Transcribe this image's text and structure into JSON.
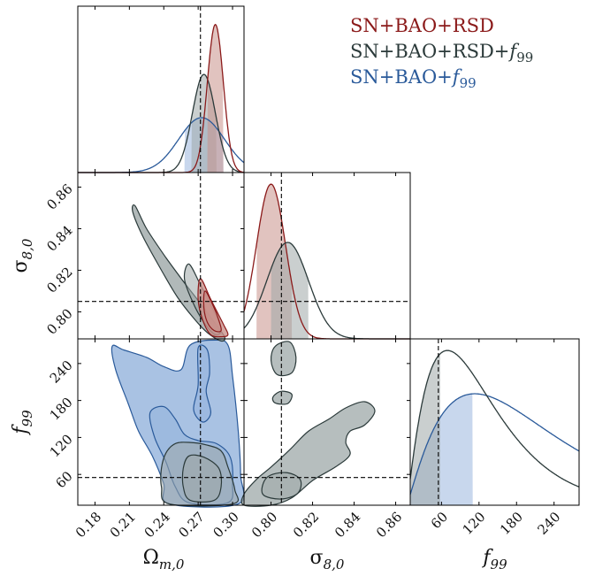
{
  "chart_data": {
    "type": "corner",
    "parameters": [
      "Omega_m0",
      "sigma_8,0",
      "f_99"
    ],
    "axis_labels": {
      "x": {
        "om": "Ω",
        "om_sub": "m,0",
        "s8": "σ",
        "s8_sub": "8,0",
        "f": "f",
        "f_sub": "99"
      },
      "y": {
        "s8": "σ",
        "s8_sub": "8,0",
        "f": "f",
        "f_sub": "99"
      }
    },
    "ranges": {
      "om": [
        0.165,
        0.31
      ],
      "s8": [
        0.787,
        0.867
      ],
      "f": [
        10,
        280
      ]
    },
    "ticks": {
      "om": [
        0.18,
        0.21,
        0.24,
        0.27,
        0.3
      ],
      "om_labels": [
        "0.18",
        "0.21",
        "0.24",
        "0.27",
        "0.30"
      ],
      "s8_x": [
        0.8,
        0.82,
        0.84,
        0.86
      ],
      "s8_x_labels": [
        "0.80",
        "0.82",
        "0.84",
        "0.86"
      ],
      "s8_y": [
        0.8,
        0.82,
        0.84,
        0.86
      ],
      "s8_y_labels": [
        "0.80",
        "0.82",
        "0.84",
        "0.86"
      ],
      "f": [
        60,
        120,
        180,
        240
      ],
      "f_labels": [
        "60",
        "120",
        "180",
        "240"
      ]
    },
    "reference": {
      "om": 0.272,
      "s8": 0.805,
      "f": 55
    },
    "legend": {
      "placement": "top-right",
      "entries": [
        {
          "base": "SN+BAO+RSD",
          "italic": "",
          "sub": ""
        },
        {
          "base": "SN+BAO+RSD+",
          "italic": "f",
          "sub": "99"
        },
        {
          "base": "SN+BAO+",
          "italic": "f",
          "sub": "99"
        }
      ]
    },
    "series": [
      {
        "key": "rsd",
        "color": "#8b1a1a",
        "fill": "#c9918b",
        "marginals": {
          "om": {
            "mean": 0.285,
            "sd": 0.007,
            "band": [
              0.278,
              0.292
            ]
          },
          "s8": {
            "mean": 0.8,
            "sd": 0.007,
            "band": [
              0.793,
              0.81
            ]
          }
        },
        "contours": {
          "om_s8": [
            [
              [
                0.272,
                0.816
              ],
              [
                0.281,
                0.806
              ],
              [
                0.292,
                0.794
              ],
              [
                0.296,
                0.789
              ],
              [
                0.29,
                0.788
              ],
              [
                0.281,
                0.789
              ],
              [
                0.274,
                0.796
              ],
              [
                0.27,
                0.806
              ]
            ],
            [
              [
                0.276,
                0.81
              ],
              [
                0.283,
                0.803
              ],
              [
                0.288,
                0.796
              ],
              [
                0.29,
                0.791
              ],
              [
                0.284,
                0.791
              ],
              [
                0.278,
                0.795
              ],
              [
                0.275,
                0.802
              ]
            ]
          ]
        }
      },
      {
        "key": "rsd_f99",
        "color": "#2b3a3a",
        "fill": "#9ea8a8",
        "marginals": {
          "om": {
            "mean": 0.275,
            "sd": 0.01,
            "band": [
              0.264,
              0.286
            ]
          },
          "s8": {
            "mean": 0.808,
            "sd": 0.01,
            "band": [
              0.8,
              0.818
            ]
          },
          "f": {
            "peak": 30,
            "scale": 60,
            "band": [
              10,
              58
            ]
          }
        },
        "contours": {
          "om_s8": [
            [
              [
                0.215,
                0.851
              ],
              [
                0.225,
                0.84
              ],
              [
                0.242,
                0.826
              ],
              [
                0.258,
                0.814
              ],
              [
                0.272,
                0.804
              ],
              [
                0.284,
                0.795
              ],
              [
                0.293,
                0.788
              ],
              [
                0.29,
                0.786
              ],
              [
                0.278,
                0.79
              ],
              [
                0.266,
                0.797
              ],
              [
                0.252,
                0.807
              ],
              [
                0.238,
                0.82
              ],
              [
                0.222,
                0.836
              ],
              [
                0.213,
                0.848
              ]
            ],
            [
              [
                0.262,
                0.823
              ],
              [
                0.272,
                0.813
              ],
              [
                0.282,
                0.802
              ],
              [
                0.29,
                0.792
              ],
              [
                0.285,
                0.789
              ],
              [
                0.275,
                0.795
              ],
              [
                0.265,
                0.805
              ],
              [
                0.258,
                0.816
              ]
            ]
          ],
          "om_f": [
            [
              [
                0.242,
                95
              ],
              [
                0.25,
                110
              ],
              [
                0.262,
                112
              ],
              [
                0.277,
                108
              ],
              [
                0.29,
                98
              ],
              [
                0.296,
                72
              ],
              [
                0.302,
                35
              ],
              [
                0.3,
                12
              ],
              [
                0.245,
                12
              ],
              [
                0.238,
                40
              ],
              [
                0.238,
                70
              ]
            ],
            [
              [
                0.262,
                90
              ],
              [
                0.275,
                88
              ],
              [
                0.288,
                70
              ],
              [
                0.29,
                40
              ],
              [
                0.284,
                18
              ],
              [
                0.263,
                18
              ],
              [
                0.257,
                40
              ],
              [
                0.257,
                70
              ]
            ]
          ],
          "s8_f": [
            [
              [
                0.787,
                28
              ],
              [
                0.793,
                52
              ],
              [
                0.8,
                72
              ],
              [
                0.809,
                100
              ],
              [
                0.818,
                130
              ],
              [
                0.828,
                150
              ],
              [
                0.836,
                168
              ],
              [
                0.845,
                178
              ],
              [
                0.85,
                163
              ],
              [
                0.845,
                140
              ],
              [
                0.838,
                130
              ],
              [
                0.836,
                112
              ],
              [
                0.838,
                92
              ],
              [
                0.831,
                72
              ],
              [
                0.82,
                50
              ],
              [
                0.81,
                22
              ],
              [
                0.8,
                10
              ],
              [
                0.787,
                10
              ]
            ],
            [
              [
                0.798,
                55
              ],
              [
                0.807,
                63
              ],
              [
                0.814,
                52
              ],
              [
                0.813,
                30
              ],
              [
                0.805,
                20
              ],
              [
                0.796,
                28
              ]
            ],
            [
              [
                0.802,
                268
              ],
              [
                0.809,
                275
              ],
              [
                0.812,
                250
              ],
              [
                0.81,
                225
              ],
              [
                0.803,
                222
              ],
              [
                0.8,
                245
              ]
            ],
            [
              [
                0.805,
                195
              ],
              [
                0.81,
                190
              ],
              [
                0.808,
                175
              ],
              [
                0.802,
                176
              ],
              [
                0.801,
                186
              ]
            ]
          ]
        }
      },
      {
        "key": "f99",
        "color": "#2a5a9a",
        "fill": "#9ab7de",
        "marginals": {
          "om": {
            "mean": 0.273,
            "sd": 0.02,
            "band": [
              0.258,
              0.292
            ]
          },
          "f": {
            "peak": 30,
            "scale": 100,
            "band": [
              10,
              110
            ]
          }
        },
        "contours": {
          "om_f": [
            [
              [
                0.195,
                268
              ],
              [
                0.205,
                262
              ],
              [
                0.225,
                250
              ],
              [
                0.24,
                235
              ],
              [
                0.255,
                230
              ],
              [
                0.263,
                270
              ],
              [
                0.285,
                278
              ],
              [
                0.296,
                270
              ],
              [
                0.3,
                220
              ],
              [
                0.305,
                130
              ],
              [
                0.307,
                60
              ],
              [
                0.305,
                12
              ],
              [
                0.245,
                12
              ],
              [
                0.24,
                45
              ],
              [
                0.23,
                90
              ],
              [
                0.218,
                130
              ],
              [
                0.209,
                175
              ],
              [
                0.198,
                230
              ]
            ],
            [
              [
                0.228,
                160
              ],
              [
                0.24,
                170
              ],
              [
                0.25,
                150
              ],
              [
                0.258,
                125
              ],
              [
                0.27,
                115
              ],
              [
                0.286,
                110
              ],
              [
                0.298,
                88
              ],
              [
                0.3,
                45
              ],
              [
                0.296,
                14
              ],
              [
                0.262,
                14
              ],
              [
                0.25,
                40
              ],
              [
                0.242,
                80
              ],
              [
                0.232,
                120
              ]
            ],
            [
              [
                0.27,
                265
              ],
              [
                0.278,
                262
              ],
              [
                0.28,
                225
              ],
              [
                0.277,
                195
              ],
              [
                0.281,
                160
              ],
              [
                0.274,
                145
              ],
              [
                0.266,
                165
              ],
              [
                0.27,
                205
              ]
            ]
          ]
        }
      }
    ]
  }
}
